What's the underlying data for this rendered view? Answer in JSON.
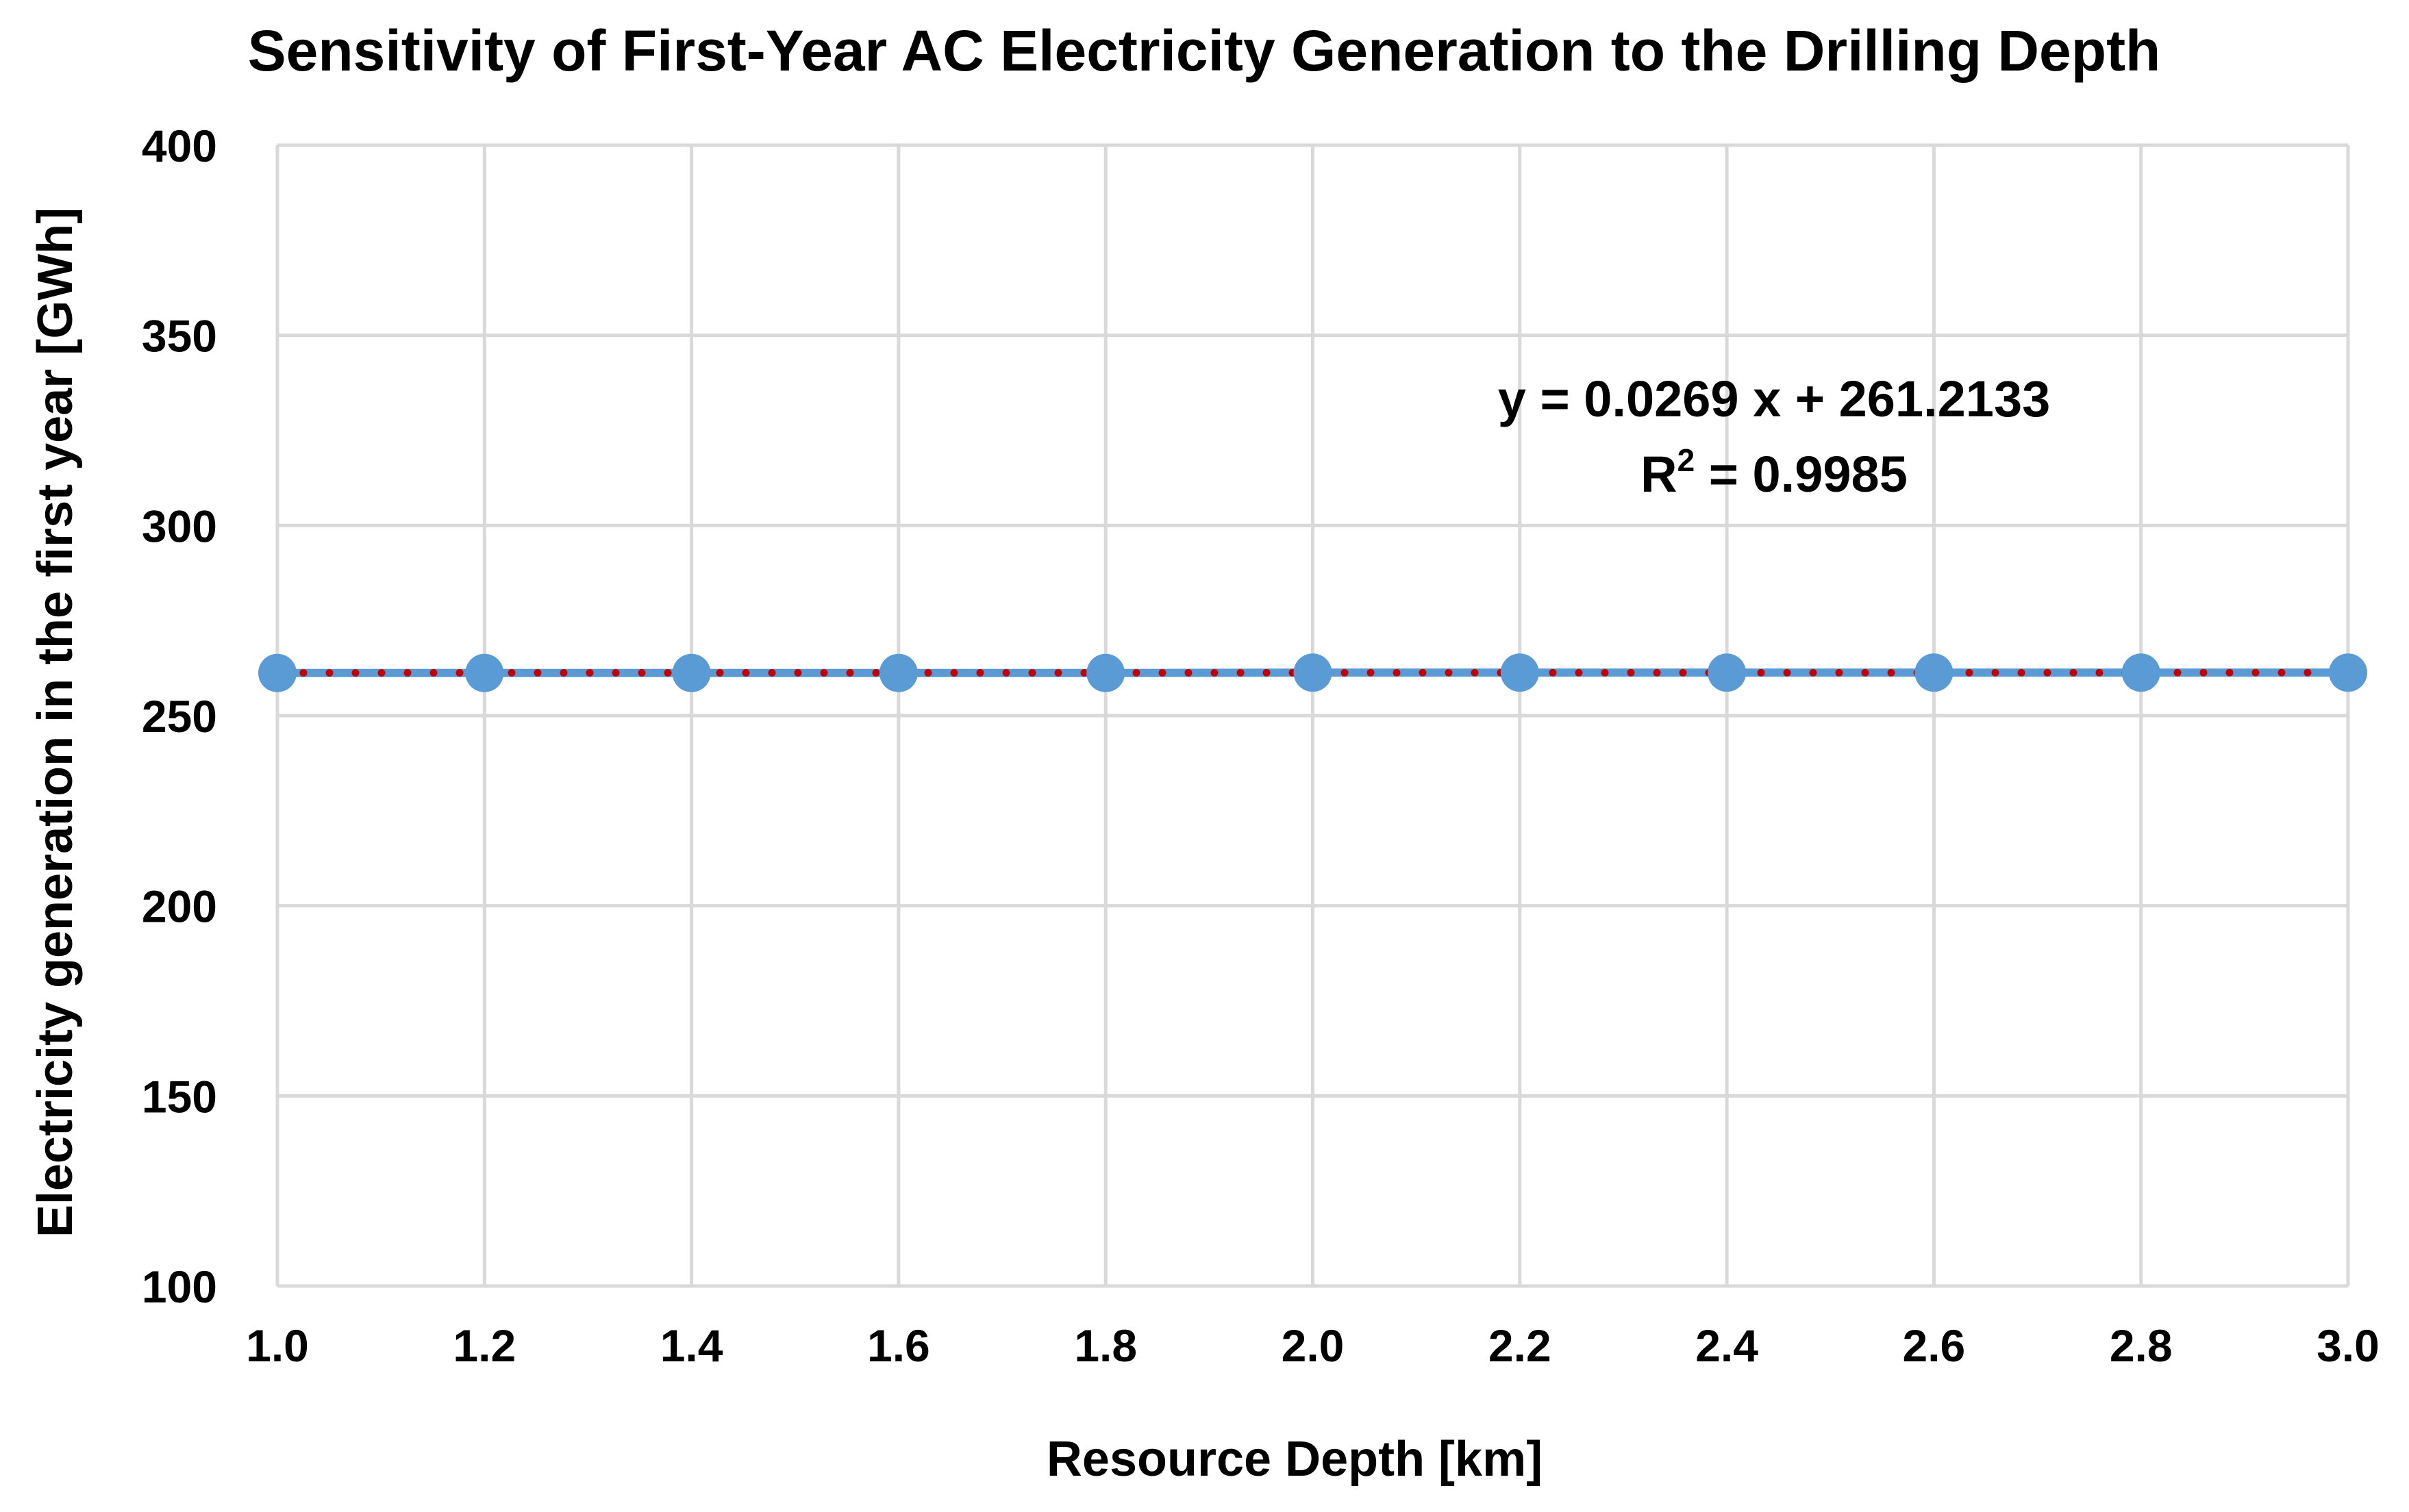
{
  "chart_data": {
    "type": "line",
    "title": "Sensitivity of First-Year AC Electricity Generation to the Drilling Depth",
    "xlabel": "Resource Depth [km]",
    "ylabel": "Electricity generation in the first year [GWh]",
    "xlim": [
      1.0,
      3.0
    ],
    "ylim": [
      100,
      400
    ],
    "x_ticks": [
      "1.0",
      "1.2",
      "1.4",
      "1.6",
      "1.8",
      "2.0",
      "2.2",
      "2.4",
      "2.6",
      "2.8",
      "3.0"
    ],
    "y_ticks": [
      "100",
      "150",
      "200",
      "250",
      "300",
      "350",
      "400"
    ],
    "grid": true,
    "legend": "none",
    "series": [
      {
        "x": [
          1.0,
          1.2,
          1.4,
          1.6,
          1.8,
          2.0,
          2.2,
          2.4,
          2.6,
          2.8,
          3.0
        ],
        "y": [
          261.2,
          261.2,
          261.2,
          261.2,
          261.2,
          261.3,
          261.3,
          261.3,
          261.3,
          261.3,
          261.3
        ],
        "color": "#5b9bd5"
      }
    ],
    "trendline": {
      "type": "linear",
      "slope": 0.0269,
      "intercept": 261.2133,
      "color": "#c00000",
      "style": "dotted"
    },
    "annotation": {
      "equation": "y = 0.0269 x + 261.2133",
      "r2_prefix": "R",
      "r2_sup": "2",
      "r2_value": " = 0.9985"
    }
  }
}
